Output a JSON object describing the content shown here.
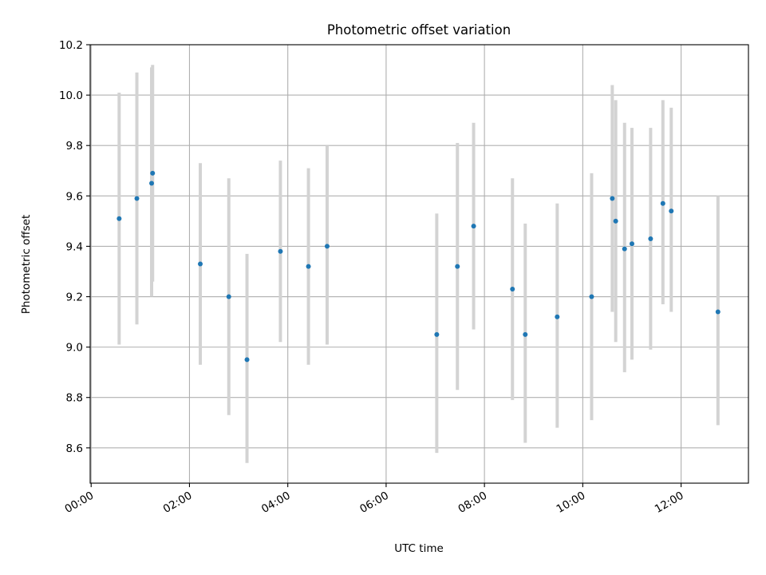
{
  "chart_data": {
    "type": "scatter",
    "title": "Photometric offset variation",
    "xlabel": "UTC time",
    "ylabel": "Photometric offset",
    "x_unit": "hours",
    "xlim": [
      -0.02,
      13.37
    ],
    "ylim": [
      8.46,
      10.2
    ],
    "x_ticks": [
      0,
      2,
      4,
      6,
      8,
      10,
      12
    ],
    "x_tick_labels": [
      "00:00",
      "02:00",
      "04:00",
      "06:00",
      "08:00",
      "10:00",
      "12:00"
    ],
    "y_ticks": [
      8.6,
      8.8,
      9.0,
      9.2,
      9.4,
      9.6,
      9.8,
      10.0,
      10.2
    ],
    "y_tick_labels": [
      "8.6",
      "8.8",
      "9.0",
      "9.2",
      "9.4",
      "9.6",
      "9.8",
      "10.0",
      "10.2"
    ],
    "grid": true,
    "marker_color": "#1f77b4",
    "errorbar_color": "#d3d3d3",
    "points": [
      {
        "x": 0.57,
        "y": 9.51,
        "lo": 9.01,
        "hi": 10.01
      },
      {
        "x": 0.93,
        "y": 9.59,
        "lo": 9.09,
        "hi": 10.09
      },
      {
        "x": 1.23,
        "y": 9.65,
        "lo": 9.2,
        "hi": 10.11
      },
      {
        "x": 1.25,
        "y": 9.69,
        "lo": 9.26,
        "hi": 10.12
      },
      {
        "x": 2.22,
        "y": 9.33,
        "lo": 8.93,
        "hi": 9.73
      },
      {
        "x": 2.8,
        "y": 9.2,
        "lo": 8.73,
        "hi": 9.67
      },
      {
        "x": 3.17,
        "y": 8.95,
        "lo": 8.54,
        "hi": 9.37
      },
      {
        "x": 3.85,
        "y": 9.38,
        "lo": 9.02,
        "hi": 9.74
      },
      {
        "x": 4.42,
        "y": 9.32,
        "lo": 8.93,
        "hi": 9.71
      },
      {
        "x": 4.8,
        "y": 9.4,
        "lo": 9.01,
        "hi": 9.8
      },
      {
        "x": 7.03,
        "y": 9.05,
        "lo": 8.58,
        "hi": 9.53
      },
      {
        "x": 7.45,
        "y": 9.32,
        "lo": 8.83,
        "hi": 9.81
      },
      {
        "x": 7.78,
        "y": 9.48,
        "lo": 9.07,
        "hi": 9.89
      },
      {
        "x": 8.57,
        "y": 9.23,
        "lo": 8.79,
        "hi": 9.67
      },
      {
        "x": 8.83,
        "y": 9.05,
        "lo": 8.62,
        "hi": 9.49
      },
      {
        "x": 9.48,
        "y": 9.12,
        "lo": 8.68,
        "hi": 9.57
      },
      {
        "x": 10.18,
        "y": 9.2,
        "lo": 8.71,
        "hi": 9.69
      },
      {
        "x": 10.6,
        "y": 9.59,
        "lo": 9.14,
        "hi": 10.04
      },
      {
        "x": 10.67,
        "y": 9.5,
        "lo": 9.02,
        "hi": 9.98
      },
      {
        "x": 10.85,
        "y": 9.39,
        "lo": 8.9,
        "hi": 9.89
      },
      {
        "x": 11.0,
        "y": 9.41,
        "lo": 8.95,
        "hi": 9.87
      },
      {
        "x": 11.38,
        "y": 9.43,
        "lo": 8.99,
        "hi": 9.87
      },
      {
        "x": 11.63,
        "y": 9.57,
        "lo": 9.17,
        "hi": 9.98
      },
      {
        "x": 11.8,
        "y": 9.54,
        "lo": 9.14,
        "hi": 9.95
      },
      {
        "x": 12.75,
        "y": 9.14,
        "lo": 8.69,
        "hi": 9.6
      }
    ]
  }
}
